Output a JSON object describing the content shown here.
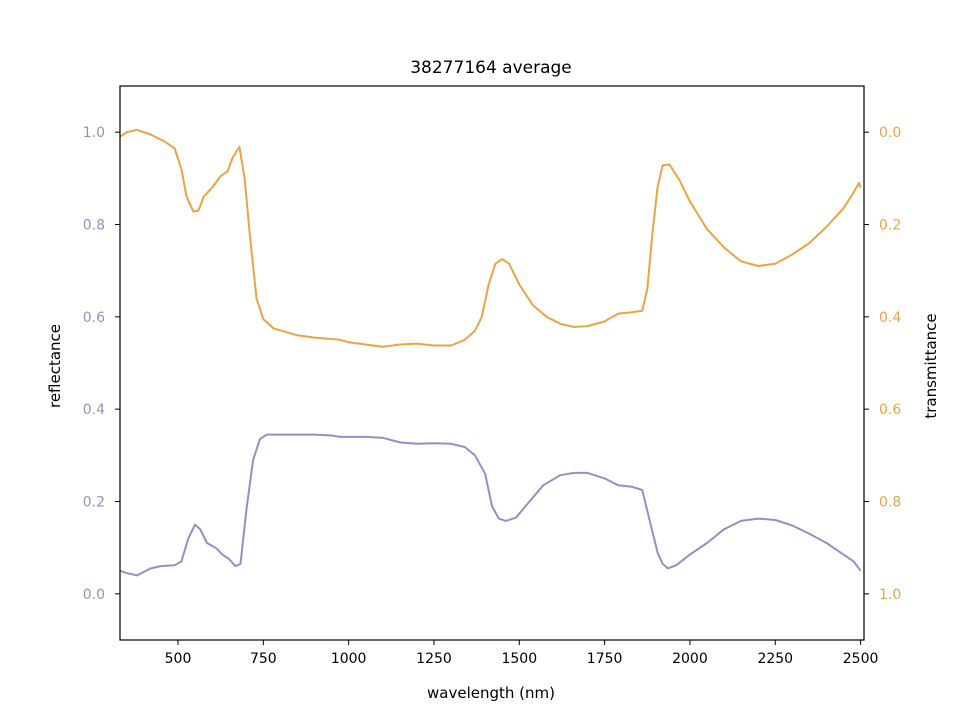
{
  "chart_data": {
    "type": "line",
    "title": "38277164 average",
    "xlabel": "wavelength (nm)",
    "ylabel_left": "reflectance",
    "ylabel_right": "transmittance",
    "xlim": [
      330,
      2510
    ],
    "ylim_left": [
      -0.1,
      1.1
    ],
    "ylim_right": [
      1.1,
      -0.1
    ],
    "right_axis_inverted": true,
    "grid": false,
    "x_ticks": [
      "500",
      "750",
      "1000",
      "1250",
      "1500",
      "1750",
      "2000",
      "2250",
      "2500"
    ],
    "y_ticks_left": [
      "0.0",
      "0.2",
      "0.4",
      "0.6",
      "0.8",
      "1.0"
    ],
    "y_ticks_right": [
      "0.0",
      "0.2",
      "0.4",
      "0.6",
      "0.8",
      "1.0"
    ],
    "colors": {
      "reflectance": "#9590c3",
      "transmittance": "#eba444"
    },
    "series": [
      {
        "axis": "left",
        "color": "#9590c3",
        "points": [
          [
            330,
            0.05
          ],
          [
            350,
            0.045
          ],
          [
            380,
            0.04
          ],
          [
            420,
            0.055
          ],
          [
            450,
            0.06
          ],
          [
            490,
            0.062
          ],
          [
            510,
            0.07
          ],
          [
            530,
            0.12
          ],
          [
            550,
            0.15
          ],
          [
            565,
            0.14
          ],
          [
            585,
            0.11
          ],
          [
            610,
            0.1
          ],
          [
            630,
            0.085
          ],
          [
            650,
            0.075
          ],
          [
            668,
            0.06
          ],
          [
            683,
            0.065
          ],
          [
            700,
            0.18
          ],
          [
            720,
            0.29
          ],
          [
            740,
            0.335
          ],
          [
            760,
            0.345
          ],
          [
            800,
            0.345
          ],
          [
            850,
            0.345
          ],
          [
            900,
            0.345
          ],
          [
            950,
            0.343
          ],
          [
            975,
            0.34
          ],
          [
            1000,
            0.34
          ],
          [
            1050,
            0.34
          ],
          [
            1100,
            0.338
          ],
          [
            1150,
            0.328
          ],
          [
            1200,
            0.325
          ],
          [
            1250,
            0.326
          ],
          [
            1300,
            0.325
          ],
          [
            1340,
            0.318
          ],
          [
            1370,
            0.3
          ],
          [
            1400,
            0.26
          ],
          [
            1420,
            0.19
          ],
          [
            1440,
            0.163
          ],
          [
            1460,
            0.158
          ],
          [
            1490,
            0.165
          ],
          [
            1530,
            0.2
          ],
          [
            1570,
            0.235
          ],
          [
            1620,
            0.257
          ],
          [
            1660,
            0.262
          ],
          [
            1700,
            0.262
          ],
          [
            1750,
            0.25
          ],
          [
            1790,
            0.235
          ],
          [
            1830,
            0.232
          ],
          [
            1860,
            0.225
          ],
          [
            1885,
            0.15
          ],
          [
            1905,
            0.09
          ],
          [
            1920,
            0.065
          ],
          [
            1935,
            0.055
          ],
          [
            1960,
            0.062
          ],
          [
            2000,
            0.085
          ],
          [
            2050,
            0.11
          ],
          [
            2100,
            0.14
          ],
          [
            2150,
            0.158
          ],
          [
            2200,
            0.163
          ],
          [
            2250,
            0.16
          ],
          [
            2300,
            0.148
          ],
          [
            2350,
            0.13
          ],
          [
            2400,
            0.11
          ],
          [
            2450,
            0.085
          ],
          [
            2480,
            0.07
          ],
          [
            2500,
            0.05
          ]
        ]
      },
      {
        "axis": "right",
        "color": "#eba444",
        "points": [
          [
            330,
            0.01
          ],
          [
            350,
            0.0
          ],
          [
            380,
            -0.005
          ],
          [
            420,
            0.005
          ],
          [
            460,
            0.02
          ],
          [
            490,
            0.035
          ],
          [
            510,
            0.08
          ],
          [
            525,
            0.14
          ],
          [
            545,
            0.172
          ],
          [
            560,
            0.17
          ],
          [
            575,
            0.14
          ],
          [
            600,
            0.12
          ],
          [
            625,
            0.095
          ],
          [
            645,
            0.085
          ],
          [
            660,
            0.055
          ],
          [
            680,
            0.032
          ],
          [
            695,
            0.1
          ],
          [
            710,
            0.22
          ],
          [
            730,
            0.36
          ],
          [
            750,
            0.405
          ],
          [
            780,
            0.425
          ],
          [
            850,
            0.44
          ],
          [
            900,
            0.445
          ],
          [
            950,
            0.448
          ],
          [
            975,
            0.45
          ],
          [
            1000,
            0.455
          ],
          [
            1050,
            0.46
          ],
          [
            1100,
            0.465
          ],
          [
            1150,
            0.46
          ],
          [
            1200,
            0.458
          ],
          [
            1250,
            0.462
          ],
          [
            1300,
            0.462
          ],
          [
            1340,
            0.45
          ],
          [
            1370,
            0.43
          ],
          [
            1390,
            0.4
          ],
          [
            1410,
            0.33
          ],
          [
            1430,
            0.285
          ],
          [
            1450,
            0.275
          ],
          [
            1470,
            0.285
          ],
          [
            1500,
            0.33
          ],
          [
            1540,
            0.375
          ],
          [
            1580,
            0.4
          ],
          [
            1620,
            0.415
          ],
          [
            1660,
            0.422
          ],
          [
            1700,
            0.42
          ],
          [
            1750,
            0.41
          ],
          [
            1790,
            0.393
          ],
          [
            1830,
            0.39
          ],
          [
            1860,
            0.387
          ],
          [
            1875,
            0.34
          ],
          [
            1890,
            0.22
          ],
          [
            1905,
            0.12
          ],
          [
            1920,
            0.072
          ],
          [
            1940,
            0.07
          ],
          [
            1970,
            0.105
          ],
          [
            2000,
            0.15
          ],
          [
            2050,
            0.21
          ],
          [
            2100,
            0.25
          ],
          [
            2150,
            0.28
          ],
          [
            2200,
            0.29
          ],
          [
            2250,
            0.285
          ],
          [
            2300,
            0.265
          ],
          [
            2350,
            0.24
          ],
          [
            2400,
            0.205
          ],
          [
            2450,
            0.165
          ],
          [
            2480,
            0.13
          ],
          [
            2495,
            0.11
          ],
          [
            2500,
            0.12
          ]
        ]
      }
    ]
  }
}
